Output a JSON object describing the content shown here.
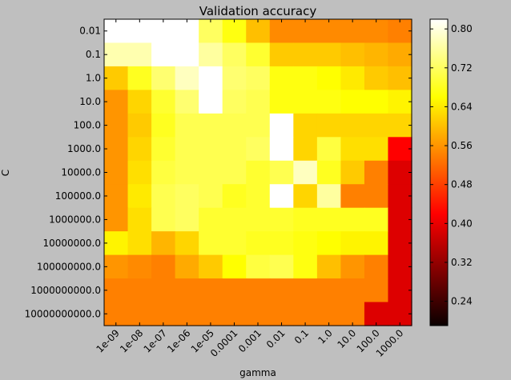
{
  "chart_data": {
    "type": "heatmap",
    "title": "Validation accuracy",
    "xlabel": "gamma",
    "ylabel": "C",
    "x_categories": [
      "1e-09",
      "1e-08",
      "1e-07",
      "1e-06",
      "1e-05",
      "0.0001",
      "0.001",
      "0.01",
      "0.1",
      "1.0",
      "10.0",
      "100.0",
      "1000.0"
    ],
    "y_categories": [
      "0.01",
      "0.1",
      "1.0",
      "10.0",
      "100.0",
      "1000.0",
      "10000.0",
      "100000.0",
      "1000000.0",
      "10000000.0",
      "100000000.0",
      "1000000000.0",
      "10000000000.0"
    ],
    "values": [
      [
        0.82,
        0.82,
        0.82,
        0.82,
        0.72,
        0.67,
        0.6,
        0.55,
        0.55,
        0.55,
        0.55,
        0.55,
        0.54
      ],
      [
        0.77,
        0.77,
        0.82,
        0.82,
        0.76,
        0.72,
        0.69,
        0.61,
        0.61,
        0.61,
        0.6,
        0.59,
        0.58
      ],
      [
        0.61,
        0.68,
        0.73,
        0.78,
        0.82,
        0.73,
        0.72,
        0.67,
        0.67,
        0.66,
        0.64,
        0.61,
        0.6
      ],
      [
        0.56,
        0.62,
        0.69,
        0.73,
        0.82,
        0.72,
        0.71,
        0.67,
        0.67,
        0.67,
        0.66,
        0.66,
        0.65
      ],
      [
        0.56,
        0.61,
        0.68,
        0.71,
        0.71,
        0.71,
        0.71,
        0.82,
        0.62,
        0.62,
        0.62,
        0.62,
        0.62
      ],
      [
        0.56,
        0.62,
        0.69,
        0.71,
        0.71,
        0.71,
        0.72,
        0.82,
        0.62,
        0.7,
        0.63,
        0.63,
        0.42
      ],
      [
        0.56,
        0.63,
        0.7,
        0.71,
        0.71,
        0.71,
        0.69,
        0.71,
        0.78,
        0.68,
        0.61,
        0.54,
        0.38
      ],
      [
        0.56,
        0.64,
        0.71,
        0.72,
        0.71,
        0.68,
        0.69,
        0.82,
        0.62,
        0.76,
        0.54,
        0.54,
        0.38
      ],
      [
        0.56,
        0.63,
        0.71,
        0.72,
        0.69,
        0.69,
        0.69,
        0.69,
        0.68,
        0.68,
        0.68,
        0.68,
        0.38
      ],
      [
        0.65,
        0.63,
        0.59,
        0.62,
        0.69,
        0.69,
        0.68,
        0.68,
        0.67,
        0.66,
        0.65,
        0.65,
        0.38
      ],
      [
        0.56,
        0.55,
        0.54,
        0.58,
        0.61,
        0.66,
        0.7,
        0.71,
        0.67,
        0.6,
        0.56,
        0.54,
        0.38
      ],
      [
        0.54,
        0.54,
        0.54,
        0.54,
        0.54,
        0.54,
        0.54,
        0.54,
        0.54,
        0.54,
        0.54,
        0.54,
        0.38
      ],
      [
        0.54,
        0.54,
        0.54,
        0.54,
        0.54,
        0.54,
        0.54,
        0.54,
        0.54,
        0.54,
        0.54,
        0.38,
        0.38
      ]
    ],
    "colormap": "hot",
    "vmin": 0.19,
    "vmax": 0.82,
    "colorbar_ticks": [
      0.24,
      0.32,
      0.4,
      0.48,
      0.56,
      0.64,
      0.72,
      0.8
    ],
    "colorbar_labels": [
      "0.24",
      "0.32",
      "0.40",
      "0.48",
      "0.56",
      "0.64",
      "0.72",
      "0.80"
    ],
    "grid": false,
    "x_tick_rotation_deg": 45
  }
}
